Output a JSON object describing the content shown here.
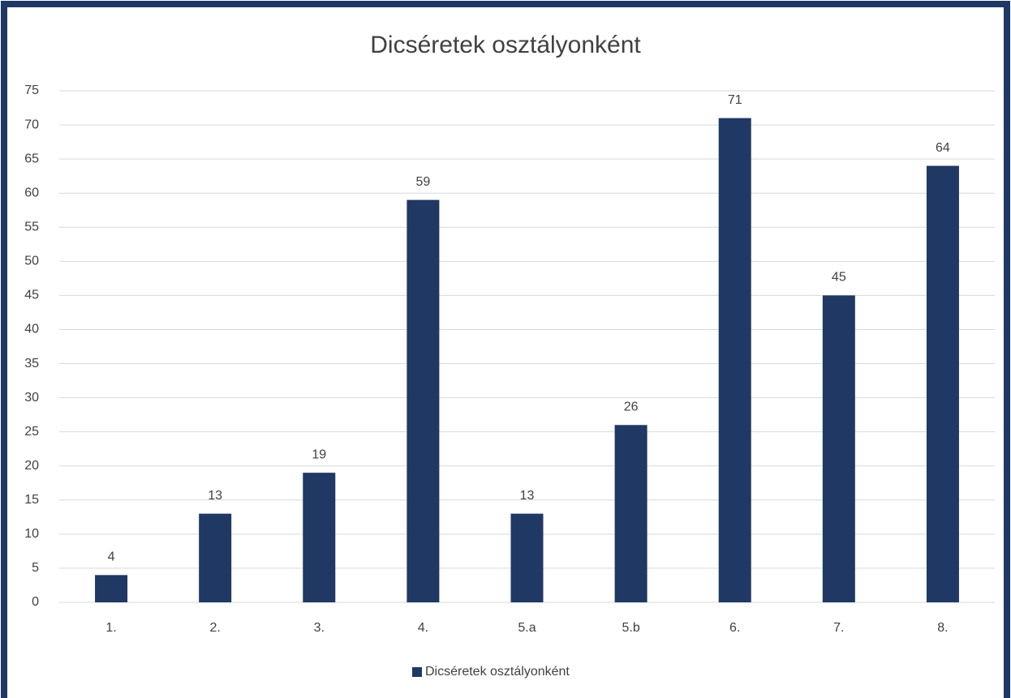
{
  "chart_data": {
    "type": "bar",
    "title": "Dicséretek osztályonként",
    "categories": [
      "1.",
      "2.",
      "3.",
      "4.",
      "5.a",
      "5.b",
      "6.",
      "7.",
      "8."
    ],
    "series": [
      {
        "name": "Dicséretek osztályonként",
        "color": "#1f3864",
        "values": [
          4,
          13,
          19,
          59,
          13,
          26,
          71,
          45,
          64
        ]
      }
    ],
    "ylim": [
      0,
      75
    ],
    "yticks": [
      0,
      5,
      10,
      15,
      20,
      25,
      30,
      35,
      40,
      45,
      50,
      55,
      60,
      65,
      70,
      75
    ],
    "grid": true,
    "legend": "bottom"
  }
}
